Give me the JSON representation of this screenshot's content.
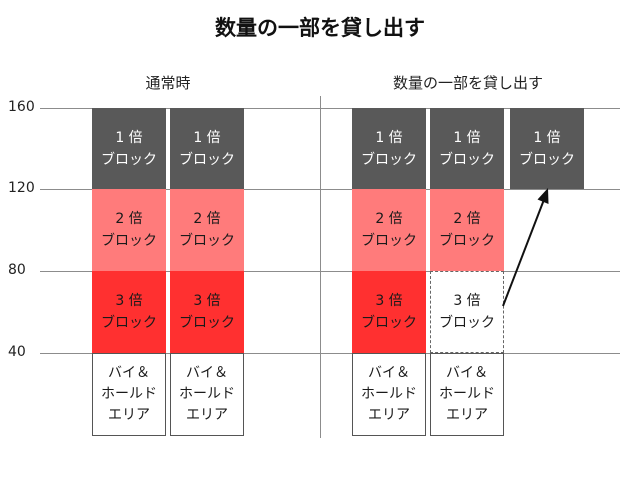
{
  "title": "数量の一部を貸し出す",
  "left_label": "通常時",
  "right_label": "数量の一部を貸し出す",
  "y_ticks": [
    "160",
    "120",
    "80",
    "40"
  ],
  "block_1x": {
    "line1": "1 倍",
    "line2": "ブロック"
  },
  "block_2x": {
    "line1": "2 倍",
    "line2": "ブロック"
  },
  "block_3x": {
    "line1": "3 倍",
    "line2": "ブロック"
  },
  "hold_area": {
    "line1": "バイ＆",
    "line2": "ホールド",
    "line3": "エリア"
  },
  "colors": {
    "block_1x": "#595959",
    "block_2x": "#ff7b7b",
    "block_3x": "#ff3030"
  }
}
